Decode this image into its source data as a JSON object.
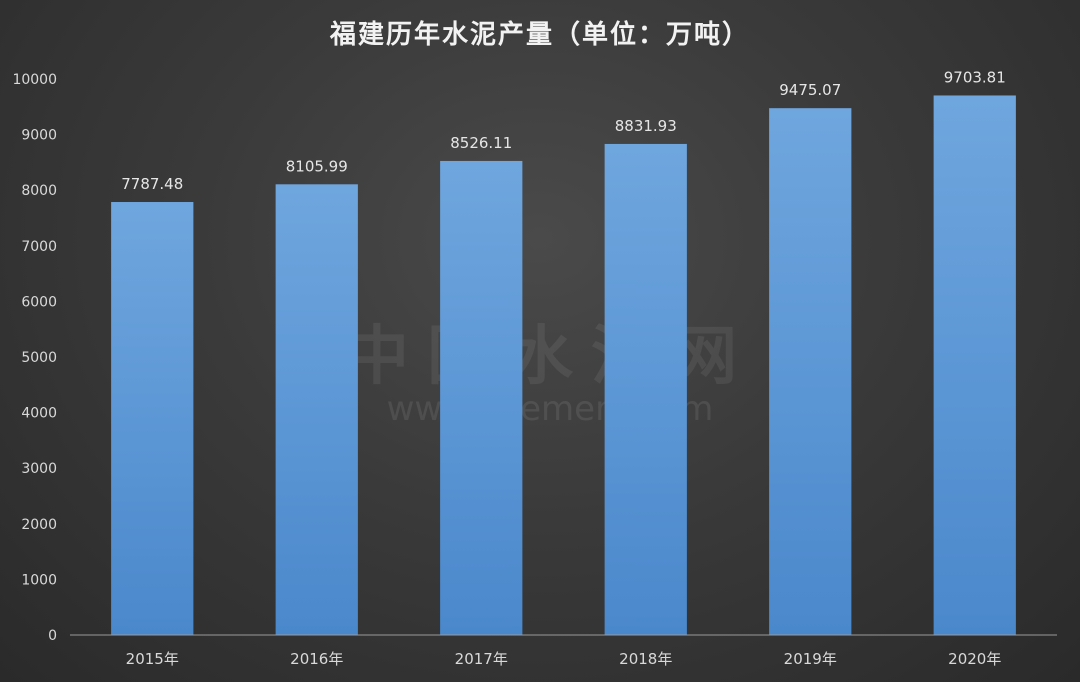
{
  "chart_data": {
    "type": "bar",
    "title": "福建历年水泥产量（单位：万吨）",
    "categories": [
      "2015年",
      "2016年",
      "2017年",
      "2018年",
      "2019年",
      "2020年"
    ],
    "series": [
      {
        "values": [
          7787.48,
          8105.99,
          8526.11,
          8831.93,
          9475.07,
          9703.81
        ]
      }
    ],
    "data_labels": [
      "7787.48",
      "8105.99",
      "8526.11",
      "8831.93",
      "9475.07",
      "9703.81"
    ],
    "yticks": [
      0,
      1000,
      2000,
      3000,
      4000,
      5000,
      6000,
      7000,
      8000,
      9000,
      10000
    ],
    "ylim": [
      0,
      10000
    ],
    "grid": false,
    "bar_color": "#5b9bd5"
  },
  "watermark": {
    "cn": "中国水泥网",
    "en": "www.Ccement.com"
  }
}
